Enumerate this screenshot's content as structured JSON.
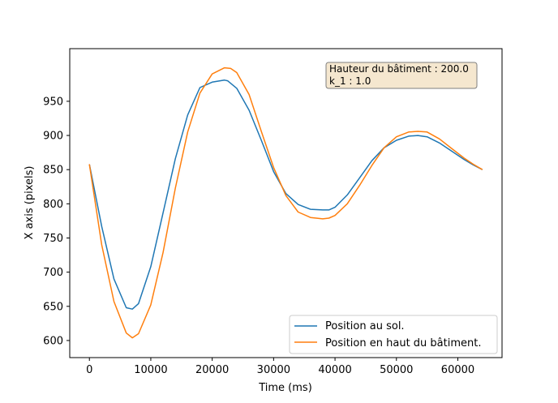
{
  "chart_data": {
    "type": "line",
    "xlabel": "Time (ms)",
    "ylabel": "X axis (pixels)",
    "xlim": [
      -3200,
      67200
    ],
    "ylim": [
      575,
      1027
    ],
    "xticks": [
      0,
      10000,
      20000,
      30000,
      40000,
      50000,
      60000
    ],
    "yticks": [
      600,
      650,
      700,
      750,
      800,
      850,
      900,
      950
    ],
    "xtick_labels": [
      "0",
      "10000",
      "20000",
      "30000",
      "40000",
      "50000",
      "60000"
    ],
    "ytick_labels": [
      "600",
      "650",
      "700",
      "750",
      "800",
      "850",
      "900",
      "950"
    ],
    "annotation": [
      "Hauteur du bâtiment : 200.0",
      "k_1 : 1.0"
    ],
    "legend_position": "lower-right",
    "series": [
      {
        "name": "Position au sol.",
        "color": "#1f77b4",
        "x": [
          0,
          2000,
          4000,
          6000,
          7000,
          8000,
          10000,
          12000,
          14000,
          16000,
          18000,
          20000,
          22000,
          22500,
          24000,
          26000,
          28000,
          30000,
          32000,
          34000,
          36000,
          38000,
          39000,
          40000,
          42000,
          44000,
          46000,
          48000,
          50000,
          52000,
          53500,
          55000,
          57000,
          59000,
          61000,
          62500,
          64000
        ],
        "y": [
          858,
          767,
          690,
          648,
          646,
          654,
          708,
          787,
          866,
          930,
          970,
          978,
          981,
          980,
          969,
          937,
          893,
          847,
          815,
          799,
          792,
          791,
          791,
          795,
          813,
          838,
          863,
          882,
          893,
          899,
          900,
          898,
          889,
          877,
          865,
          857,
          850
        ]
      },
      {
        "name": "Position en haut du bâtiment.",
        "color": "#ff7f0e",
        "x": [
          0,
          2000,
          4000,
          6000,
          7000,
          8000,
          10000,
          12000,
          14000,
          16000,
          18000,
          20000,
          22000,
          23000,
          24000,
          26000,
          28000,
          30000,
          32000,
          34000,
          36000,
          38000,
          39000,
          40000,
          42000,
          44000,
          46000,
          48000,
          50000,
          52000,
          53500,
          55000,
          57000,
          59000,
          61000,
          62500,
          64000
        ],
        "y": [
          858,
          740,
          657,
          611,
          604,
          610,
          652,
          729,
          823,
          905,
          962,
          990,
          999,
          998,
          992,
          960,
          906,
          853,
          812,
          788,
          780,
          778,
          779,
          783,
          800,
          827,
          856,
          882,
          898,
          905,
          906,
          905,
          895,
          881,
          867,
          858,
          850
        ]
      }
    ]
  }
}
